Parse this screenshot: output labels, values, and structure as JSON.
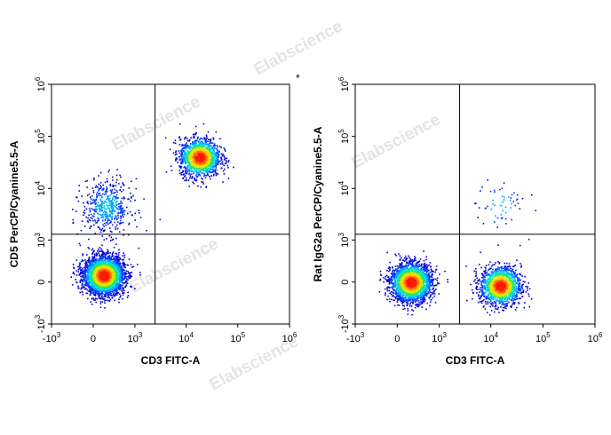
{
  "watermark_text": "Elabscience",
  "marker_text": "*",
  "colors": {
    "density_scale": [
      "#0000d0",
      "#0033ff",
      "#00a0ff",
      "#00e0e0",
      "#30e060",
      "#c8f000",
      "#ffd000",
      "#ff7000",
      "#ff1a00"
    ],
    "gate_line": "#000000",
    "axes": "#000000",
    "watermark": "#e4e4e4"
  },
  "chart_data": [
    {
      "type": "scatter",
      "subtype": "flow-cytometry-density-dot-plot",
      "xlabel": "CD3 FITC-A",
      "ylabel": "CD5 PerCP/Cyanine5.5-A",
      "x_scale": "biexponential",
      "y_scale": "biexponential",
      "xlim": [
        -1000,
        1000000
      ],
      "ylim": [
        -1000,
        1000000
      ],
      "x_ticks": [
        {
          "value": -1000,
          "base": "-10",
          "exp": "3"
        },
        {
          "value": 0,
          "base": "0",
          "exp": ""
        },
        {
          "value": 1000,
          "base": "10",
          "exp": "3"
        },
        {
          "value": 10000,
          "base": "10",
          "exp": "4"
        },
        {
          "value": 100000,
          "base": "10",
          "exp": "5"
        },
        {
          "value": 1000000,
          "base": "10",
          "exp": "6"
        }
      ],
      "y_ticks": [
        {
          "value": -1000,
          "base": "-10",
          "exp": "3"
        },
        {
          "value": 0,
          "base": "0",
          "exp": ""
        },
        {
          "value": 1000,
          "base": "10",
          "exp": "3"
        },
        {
          "value": 10000,
          "base": "10",
          "exp": "4"
        },
        {
          "value": 100000,
          "base": "10",
          "exp": "5"
        },
        {
          "value": 1000000,
          "base": "10",
          "exp": "6"
        }
      ],
      "gate": {
        "x": 2500,
        "y": 1300
      },
      "populations": [
        {
          "x_center": 150,
          "y_center": 100,
          "count": 3200
        },
        {
          "x_center": 18000,
          "y_center": 40000,
          "count": 1500
        },
        {
          "x_center": 200,
          "y_center": 4500,
          "count": 500,
          "dim": true
        }
      ]
    },
    {
      "type": "scatter",
      "subtype": "flow-cytometry-density-dot-plot",
      "xlabel": "CD3 FITC-A",
      "ylabel": "Rat IgG2a PerCP/Cyanine5.5-A",
      "x_scale": "biexponential",
      "y_scale": "biexponential",
      "xlim": [
        -1000,
        1000000
      ],
      "ylim": [
        -1000,
        1000000
      ],
      "x_ticks": [
        {
          "value": -1000,
          "base": "-10",
          "exp": "3"
        },
        {
          "value": 0,
          "base": "0",
          "exp": ""
        },
        {
          "value": 1000,
          "base": "10",
          "exp": "3"
        },
        {
          "value": 10000,
          "base": "10",
          "exp": "4"
        },
        {
          "value": 100000,
          "base": "10",
          "exp": "5"
        },
        {
          "value": 1000000,
          "base": "10",
          "exp": "6"
        }
      ],
      "y_ticks": [
        {
          "value": -1000,
          "base": "-10",
          "exp": "3"
        },
        {
          "value": 0,
          "base": "0",
          "exp": ""
        },
        {
          "value": 1000,
          "base": "10",
          "exp": "3"
        },
        {
          "value": 10000,
          "base": "10",
          "exp": "4"
        },
        {
          "value": 100000,
          "base": "10",
          "exp": "5"
        },
        {
          "value": 1000000,
          "base": "10",
          "exp": "6"
        }
      ],
      "gate": {
        "x": 2500,
        "y": 1300
      },
      "populations": [
        {
          "x_center": 200,
          "y_center": 0,
          "count": 2400
        },
        {
          "x_center": 15000,
          "y_center": -50,
          "count": 1500
        },
        {
          "x_center": 15000,
          "y_center": 5000,
          "count": 60,
          "dim": true
        }
      ]
    }
  ]
}
